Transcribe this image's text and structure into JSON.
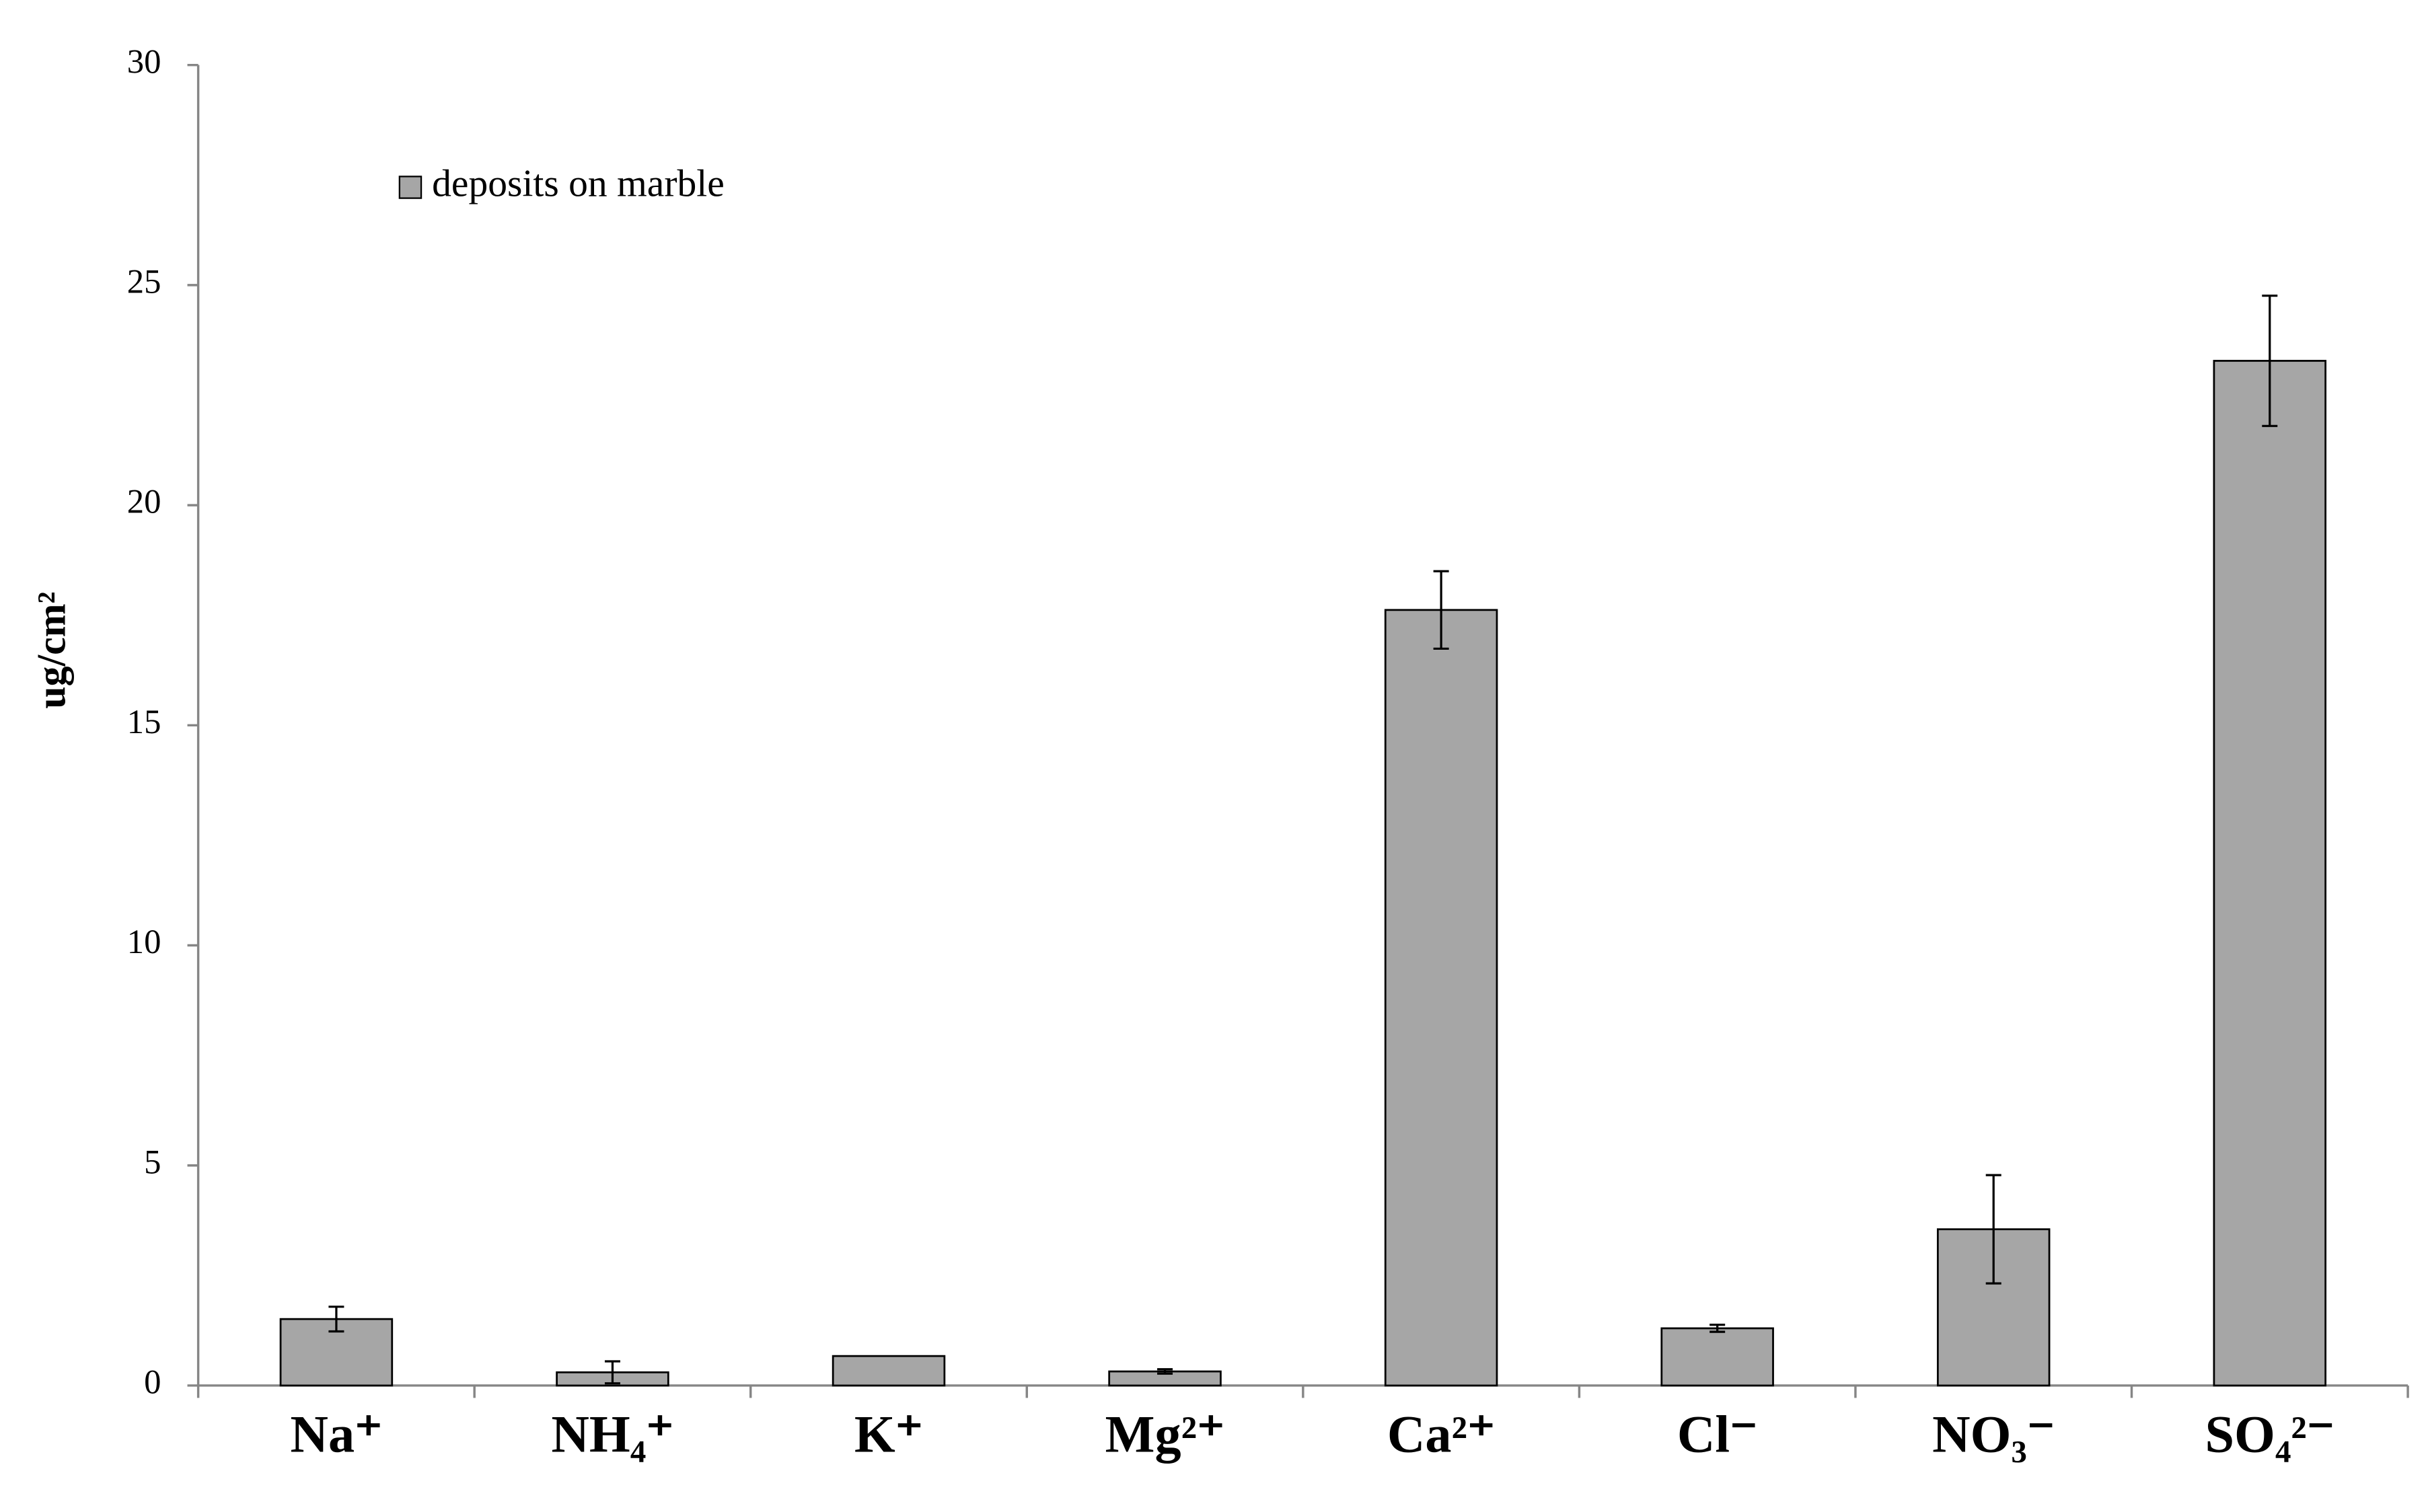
{
  "chart_data": {
    "type": "bar",
    "ylabel": "ug/cm²",
    "categories": [
      "Na⁺",
      "NH₄⁺",
      "K⁺",
      "Mg²⁺",
      "Ca²⁺",
      "Cl⁻",
      "NO₃⁻",
      "SO₄²⁻"
    ],
    "series": [
      {
        "name": "deposits on marble",
        "color": "#a6a6a6",
        "values": [
          1.51,
          0.3,
          0.67,
          0.32,
          17.62,
          1.3,
          3.55,
          23.28
        ],
        "errors": [
          0.28,
          0.25,
          null,
          0.05,
          0.88,
          0.08,
          1.23,
          1.48
        ]
      }
    ],
    "ylim": [
      0,
      30
    ],
    "yticks": [
      0,
      5,
      10,
      15,
      20,
      25,
      30
    ],
    "grid": false,
    "legend": "upper left"
  }
}
